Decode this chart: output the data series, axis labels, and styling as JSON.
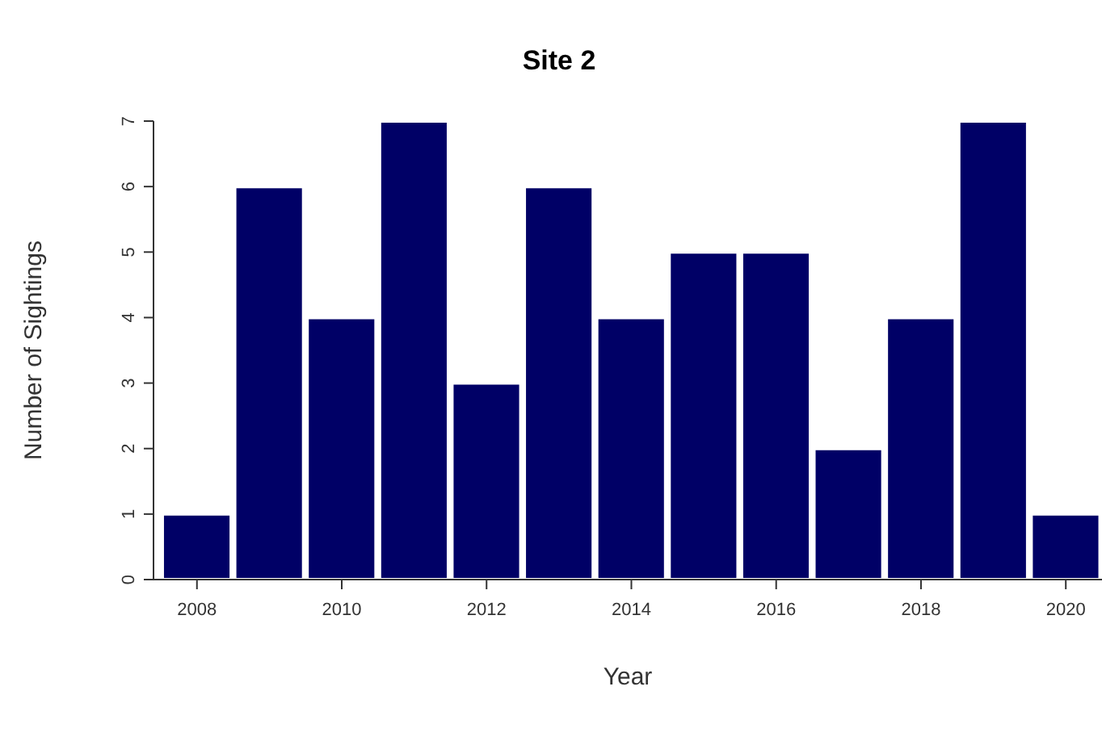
{
  "chart_data": {
    "type": "bar",
    "title": "Site 2",
    "xlabel": "Year",
    "ylabel": "Number of Sightings",
    "x": [
      2008,
      2009,
      2010,
      2011,
      2012,
      2013,
      2014,
      2015,
      2016,
      2017,
      2018,
      2019,
      2020
    ],
    "values": [
      1,
      6,
      4,
      7,
      3,
      6,
      4,
      5,
      5,
      2,
      4,
      7,
      1
    ],
    "color": "#000066",
    "xlim": [
      2007.4,
      2020.5
    ],
    "xticks": [
      2008,
      2010,
      2012,
      2014,
      2016,
      2018,
      2020
    ],
    "ylim": [
      0,
      7
    ],
    "yticks": [
      0,
      1,
      2,
      3,
      4,
      5,
      6,
      7
    ],
    "grid": false,
    "legend": false
  }
}
